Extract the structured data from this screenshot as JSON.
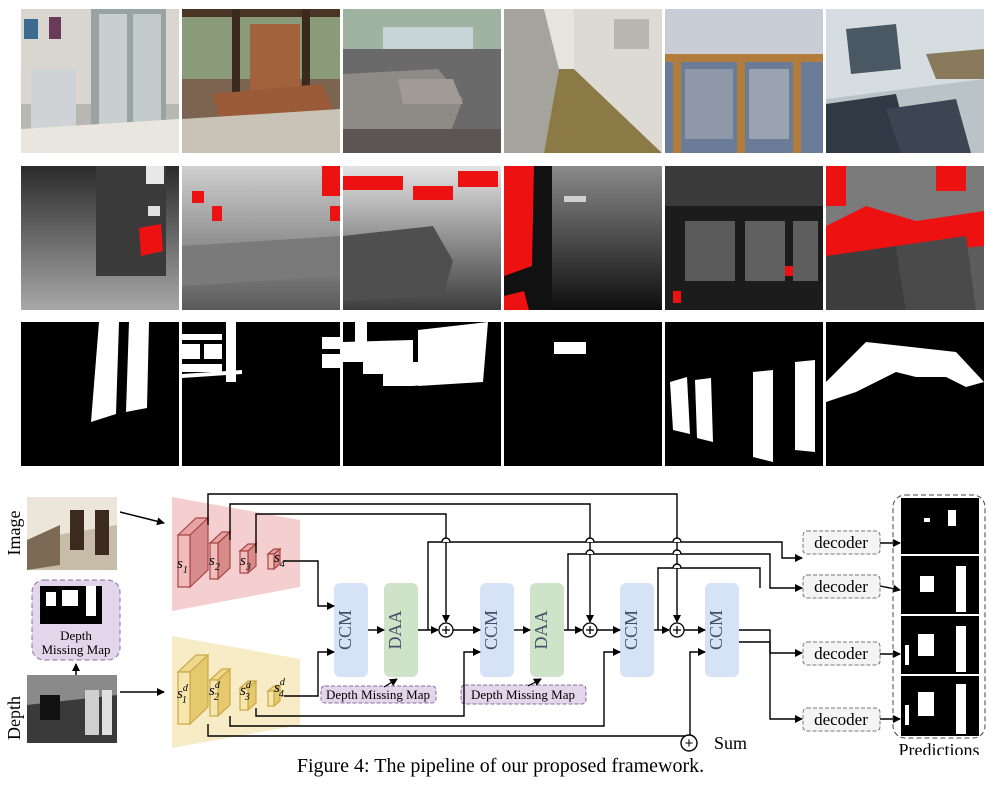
{
  "grid": {
    "rows": [
      "rgb",
      "depth",
      "mask"
    ],
    "columns": 6
  },
  "pipeline": {
    "input_image_label": "Image",
    "input_depth_label": "Depth",
    "missing_map_label_line1": "Depth",
    "missing_map_label_line2": "Missing Map",
    "rgb_stages": [
      {
        "base": "s",
        "sub": "1"
      },
      {
        "base": "s",
        "sub": "2"
      },
      {
        "base": "s",
        "sub": "3"
      },
      {
        "base": "s",
        "sub": "4"
      }
    ],
    "depth_stages": [
      {
        "base": "s",
        "sub": "1",
        "sup": "d"
      },
      {
        "base": "s",
        "sub": "2",
        "sup": "d"
      },
      {
        "base": "s",
        "sub": "3",
        "sup": "d"
      },
      {
        "base": "s",
        "sub": "4",
        "sup": "d"
      }
    ],
    "ccm_label": "CCM",
    "daa_label": "DAA",
    "dmm_tag": "Depth Missing Map",
    "decoder_label": "decoder",
    "predictions_label": "Predictions",
    "sum_legend": "Sum",
    "sum_symbol": "+",
    "colors": {
      "rgb_branch": "#f5cfcf",
      "depth_branch": "#f7ecc6",
      "ccm": "#d6e2f5",
      "daa": "#cfe3c8",
      "dmm_tag": "#e3d5ea"
    }
  },
  "caption": "Figure 4: The pipeline of our proposed framework."
}
